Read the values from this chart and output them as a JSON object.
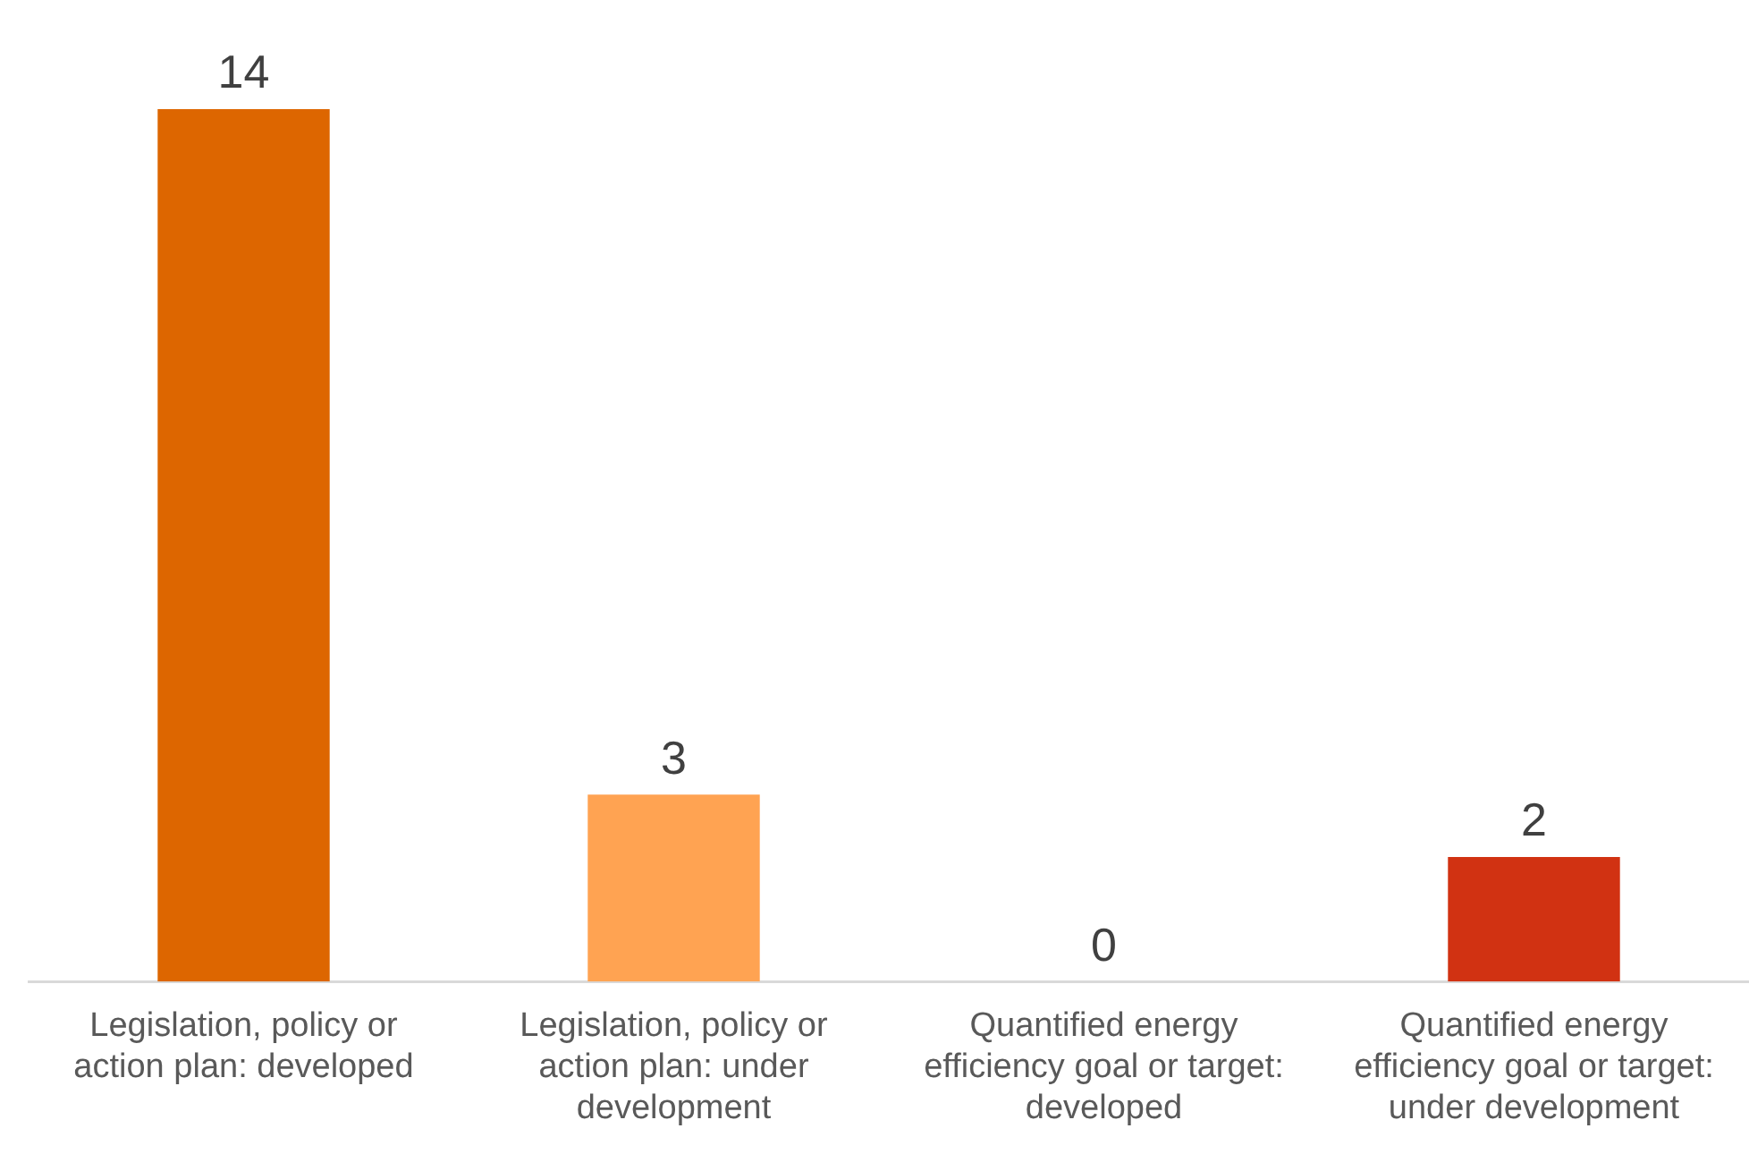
{
  "chart_data": {
    "type": "bar",
    "categories": [
      "Legislation, policy or action plan: developed",
      "Legislation, policy or action plan: under development",
      "Quantified energy efficiency goal or target: developed",
      "Quantified energy efficiency goal or target: under development"
    ],
    "values": [
      14,
      3,
      0,
      2
    ],
    "colors": [
      "#dd6600",
      "#ffa352",
      "#e87020",
      "#d13212"
    ],
    "ylim": [
      0,
      14
    ],
    "data_labels": true,
    "grid": false,
    "legend": false
  }
}
